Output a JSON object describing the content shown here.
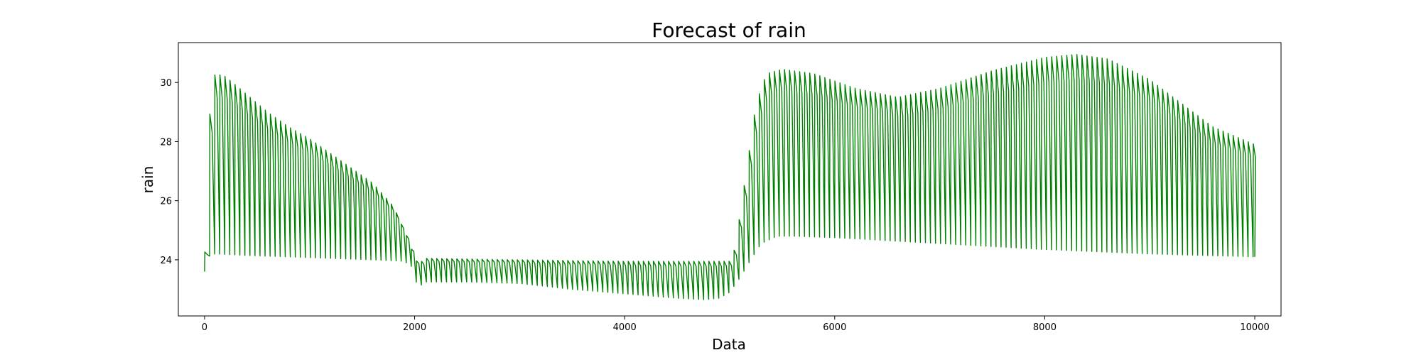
{
  "chart_data": {
    "type": "line",
    "title": "Forecast of rain",
    "xlabel": "Data",
    "ylabel": "rain",
    "xlim": [
      -250,
      10250
    ],
    "ylim": [
      22.1,
      31.35
    ],
    "xticks": [
      0,
      2000,
      4000,
      6000,
      8000,
      10000
    ],
    "yticks": [
      24,
      26,
      28,
      30
    ],
    "grid": false,
    "legend": "none",
    "color": "#008000",
    "series": [
      {
        "cycle_length": 48,
        "upper_envelope": {
          "x": [
            0,
            30,
            60,
            100,
            200,
            400,
            600,
            800,
            1000,
            1200,
            1400,
            1600,
            1800,
            1950,
            2000,
            2050,
            2100,
            3000,
            4000,
            5000,
            5050,
            5150,
            5250,
            5350,
            5500,
            5800,
            6200,
            6600,
            7000,
            7500,
            8000,
            8300,
            8600,
            9000,
            9300,
            9600,
            10000
          ],
          "y": [
            24.0,
            28.0,
            29.4,
            30.3,
            30.2,
            29.6,
            29.0,
            28.5,
            28.1,
            27.6,
            27.1,
            26.6,
            25.8,
            24.6,
            24.0,
            23.9,
            24.05,
            24.0,
            23.95,
            23.95,
            24.4,
            26.8,
            29.3,
            30.3,
            30.45,
            30.3,
            29.8,
            29.5,
            29.8,
            30.4,
            30.85,
            30.95,
            30.8,
            30.1,
            29.3,
            28.5,
            27.9
          ]
        },
        "lower_envelope": {
          "x": [
            0,
            50,
            100,
            400,
            800,
            1200,
            1600,
            1900,
            1980,
            2030,
            2100,
            2500,
            3000,
            3500,
            4000,
            4500,
            4750,
            4900,
            5000,
            5100,
            5200,
            5300,
            5450,
            5600,
            6000,
            7000,
            8000,
            9000,
            9500,
            10000
          ],
          "y": [
            23.6,
            24.15,
            24.2,
            24.15,
            24.1,
            24.05,
            24.0,
            23.95,
            23.75,
            23.05,
            23.25,
            23.25,
            23.2,
            23.0,
            22.85,
            22.7,
            22.65,
            22.7,
            22.9,
            23.4,
            24.0,
            24.55,
            24.8,
            24.8,
            24.75,
            24.55,
            24.35,
            24.2,
            24.15,
            24.1
          ]
        }
      }
    ]
  }
}
